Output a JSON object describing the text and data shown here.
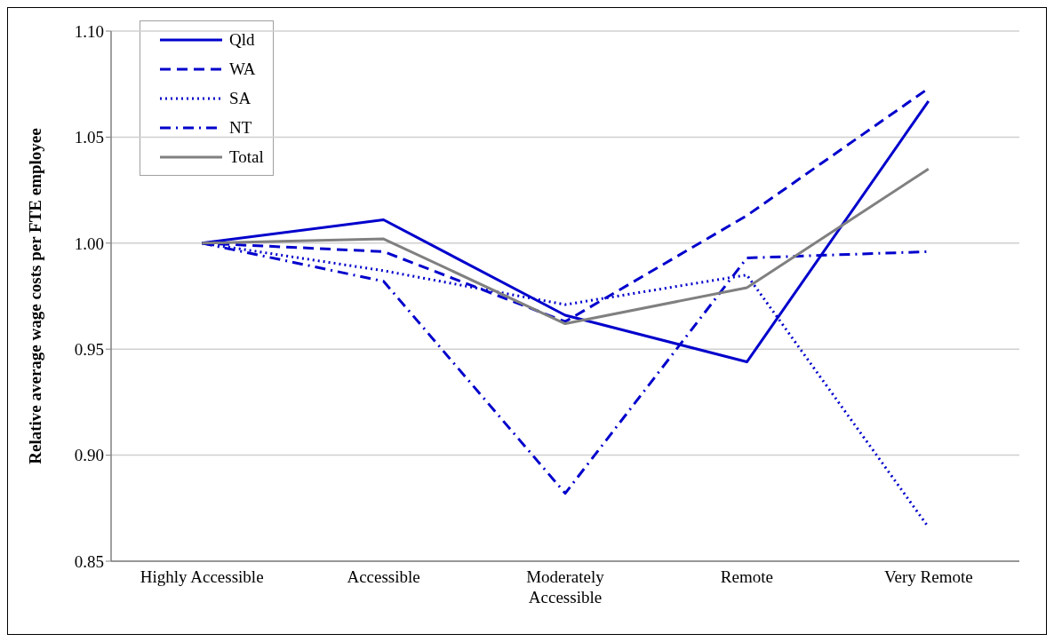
{
  "chart_data": {
    "type": "line",
    "ylabel": "Relative average wage costs per FTE employee",
    "categories": [
      "Highly Accessible",
      "Accessible",
      "Moderately Accessible",
      "Remote",
      "Very Remote"
    ],
    "series": [
      {
        "name": "Qld",
        "color": "#0000cc",
        "line_style": "solid",
        "values": [
          1.0,
          1.011,
          0.966,
          0.944,
          1.067
        ]
      },
      {
        "name": "WA",
        "color": "#0000cc",
        "line_style": "dashed",
        "values": [
          1.0,
          0.996,
          0.963,
          1.013,
          1.073
        ]
      },
      {
        "name": "SA",
        "color": "#0000cc",
        "line_style": "dotted",
        "values": [
          1.0,
          0.987,
          0.971,
          0.985,
          0.866
        ]
      },
      {
        "name": "NT",
        "color": "#0000cc",
        "line_style": "dashdot",
        "values": [
          1.0,
          0.982,
          0.882,
          0.993,
          0.996
        ]
      },
      {
        "name": "Total",
        "color": "#808080",
        "line_style": "solid",
        "values": [
          1.0,
          1.002,
          0.962,
          0.979,
          1.035
        ]
      }
    ],
    "ylim": [
      0.85,
      1.1
    ],
    "yticks": [
      {
        "value": 0.85,
        "label": "0.85"
      },
      {
        "value": 0.9,
        "label": "0.90"
      },
      {
        "value": 0.95,
        "label": "0.95"
      },
      {
        "value": 1.0,
        "label": "1.00"
      },
      {
        "value": 1.05,
        "label": "1.05"
      },
      {
        "value": 1.1,
        "label": "1.10"
      }
    ],
    "grid": "y",
    "legend": "top left",
    "marker": "none"
  }
}
